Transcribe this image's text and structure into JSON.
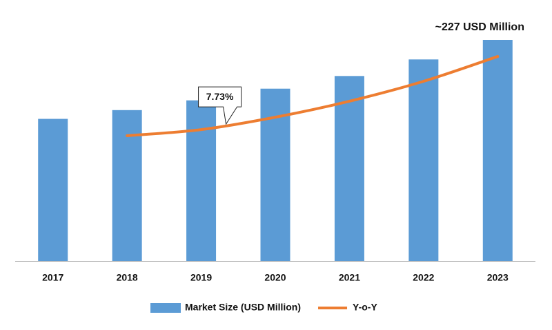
{
  "chart_data": {
    "type": "bar",
    "categories": [
      "2017",
      "2018",
      "2019",
      "2020",
      "2021",
      "2022",
      "2023"
    ],
    "series": [
      {
        "name": "Market Size (USD Million)",
        "color": "#5b9bd5",
        "values": [
          146,
          155,
          165,
          177,
          190,
          207,
          227
        ],
        "value_labels": [
          null,
          null,
          null,
          null,
          null,
          null,
          "~227 USD Million"
        ]
      },
      {
        "name": "Y-o-Y",
        "color": "#ed7d31",
        "type": "line",
        "axis": "y2",
        "values": [
          null,
          7.37,
          7.73,
          8.46,
          9.4,
          10.57,
          12.03
        ],
        "value_labels": [
          null,
          null,
          "7.73%",
          null,
          null,
          null,
          null
        ]
      }
    ],
    "ylim": [
      0,
      227
    ],
    "y2lim": [
      0,
      13
    ],
    "legend": "bottom"
  }
}
